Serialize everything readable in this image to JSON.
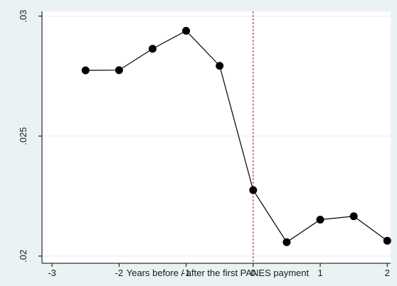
{
  "chart_data": {
    "type": "line",
    "title": "",
    "xlabel": "Years before / after the first PANES payment",
    "ylabel": "",
    "xlim": [
      -3.15,
      2.05
    ],
    "ylim": [
      0.0197,
      0.0302
    ],
    "x_ticks": [
      -3,
      -2,
      -1,
      0,
      1,
      2
    ],
    "x_tick_labels": [
      "-3",
      "-2",
      "-1",
      "0",
      "1",
      "2"
    ],
    "y_ticks": [
      0.02,
      0.025,
      0.03
    ],
    "y_tick_labels": [
      ".02",
      ".025",
      ".03"
    ],
    "grid": "horizontal",
    "reference_line": {
      "x": 0,
      "style": "dashed",
      "color": "#a0182f"
    },
    "series": [
      {
        "x": [
          -2.5,
          -2,
          -1.5,
          -1,
          -0.5,
          0,
          0.5,
          1,
          1.5,
          2
        ],
        "values": [
          0.02774,
          0.02775,
          0.02864,
          0.02939,
          0.02793,
          0.02275,
          0.02058,
          0.02152,
          0.02166,
          0.02064
        ],
        "color": "#000000",
        "marker": "filled-circle"
      }
    ]
  }
}
